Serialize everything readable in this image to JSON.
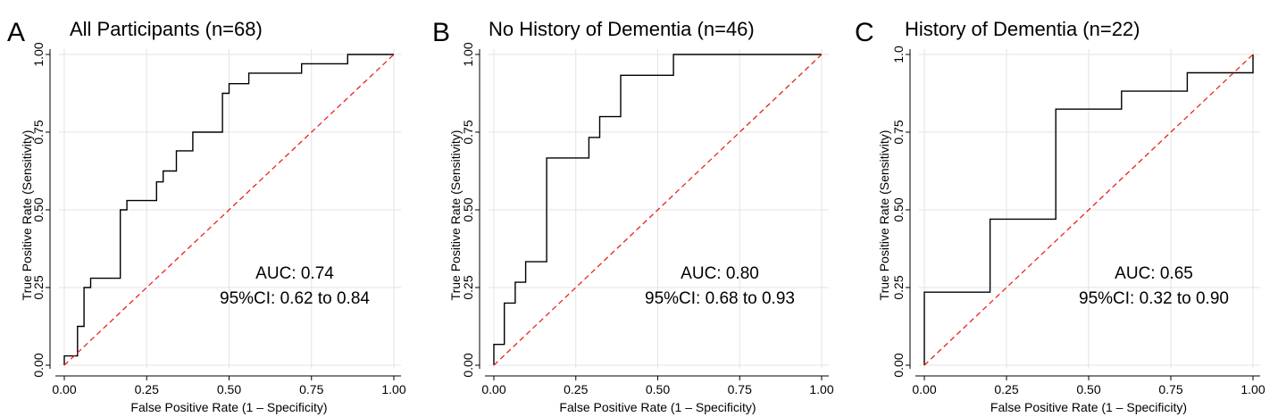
{
  "figure": {
    "panels": [
      {
        "letter": "A",
        "title": "All Participants (n=68)",
        "auc_label": "AUC: 0.74",
        "ci_label": "95%CI: 0.62 to 0.84"
      },
      {
        "letter": "B",
        "title": "No History of Dementia (n=46)",
        "auc_label": "AUC: 0.80",
        "ci_label": "95%CI: 0.68 to 0.93"
      },
      {
        "letter": "C",
        "title": "History of Dementia (n=22)",
        "auc_label": "AUC: 0.65",
        "ci_label": "95%CI: 0.32 to 0.90"
      }
    ]
  },
  "chart_data": [
    {
      "type": "line",
      "title": "All Participants (n=68)",
      "xlabel": "False Positive Rate (1 – Specificity)",
      "ylabel": "True Positive Rate (Sensitivity)",
      "xlim": [
        0,
        1
      ],
      "ylim": [
        0,
        1
      ],
      "x_ticks": [
        "0.00",
        "0.25",
        "0.50",
        "0.75",
        "1.00"
      ],
      "y_ticks": [
        "0.00",
        "0.25",
        "0.50",
        "0.75",
        "1.00"
      ],
      "grid": true,
      "annotations": [
        "AUC: 0.74",
        "95%CI: 0.62 to 0.84"
      ],
      "series": [
        {
          "style": "step",
          "color": "#000000",
          "x": [
            0,
            0,
            0.02,
            0.02,
            0.04,
            0.04,
            0.06,
            0.06,
            0.08,
            0.08,
            0.17,
            0.17,
            0.19,
            0.19,
            0.28,
            0.28,
            0.3,
            0.3,
            0.32,
            0.32,
            0.34,
            0.34,
            0.39,
            0.39,
            0.48,
            0.48,
            0.5,
            0.5,
            0.56,
            0.56,
            0.72,
            0.72,
            0.86,
            0.86,
            1
          ],
          "y": [
            0,
            0.03,
            0.03,
            0.03,
            0.03,
            0.125,
            0.125,
            0.25,
            0.25,
            0.28,
            0.28,
            0.5,
            0.5,
            0.53,
            0.53,
            0.59,
            0.59,
            0.625,
            0.625,
            0.625,
            0.625,
            0.69,
            0.69,
            0.75,
            0.75,
            0.875,
            0.875,
            0.906,
            0.906,
            0.94,
            0.94,
            0.97,
            0.97,
            1,
            1
          ]
        },
        {
          "style": "dashed",
          "color": "#e8231f",
          "x": [
            0,
            1
          ],
          "y": [
            0,
            1
          ]
        }
      ]
    },
    {
      "type": "line",
      "title": "No History of Dementia (n=46)",
      "xlabel": "False Positive Rate (1 – Specificity)",
      "ylabel": "True Positive Rate (Sensitivity)",
      "xlim": [
        0,
        1
      ],
      "ylim": [
        0,
        1
      ],
      "x_ticks": [
        "0.00",
        "0.25",
        "0.50",
        "0.75",
        "1.00"
      ],
      "y_ticks": [
        "0.00",
        "0.25",
        "0.50",
        "0.75",
        "1.00"
      ],
      "grid": true,
      "annotations": [
        "AUC: 0.80",
        "95%CI: 0.68 to 0.93"
      ],
      "series": [
        {
          "style": "step",
          "color": "#000000",
          "x": [
            0,
            0,
            0.032,
            0.032,
            0.065,
            0.065,
            0.097,
            0.097,
            0.161,
            0.161,
            0.29,
            0.29,
            0.323,
            0.323,
            0.387,
            0.387,
            0.548,
            0.548,
            1
          ],
          "y": [
            0,
            0.067,
            0.067,
            0.2,
            0.2,
            0.267,
            0.267,
            0.333,
            0.333,
            0.667,
            0.667,
            0.733,
            0.733,
            0.8,
            0.8,
            0.933,
            0.933,
            1,
            1
          ]
        },
        {
          "style": "dashed",
          "color": "#e8231f",
          "x": [
            0,
            1
          ],
          "y": [
            0,
            1
          ]
        }
      ]
    },
    {
      "type": "line",
      "title": "History of Dementia (n=22)",
      "xlabel": "False Positive Rate (1 – Specificity)",
      "ylabel": "True Positive Rate (Sensitivity)",
      "xlim": [
        0,
        1
      ],
      "ylim": [
        0,
        1
      ],
      "x_ticks": [
        "0.00",
        "0.25",
        "0.50",
        "0.75",
        "1.00"
      ],
      "y_ticks": [
        "0.00",
        "0.25",
        "0.50",
        "0.75",
        "1.0"
      ],
      "grid": true,
      "annotations": [
        "AUC: 0.65",
        "95%CI: 0.32 to 0.90"
      ],
      "series": [
        {
          "style": "step",
          "color": "#000000",
          "x": [
            0,
            0,
            0.2,
            0.2,
            0.4,
            0.4,
            0.6,
            0.6,
            0.8,
            0.8,
            1,
            1
          ],
          "y": [
            0,
            0.235,
            0.235,
            0.47,
            0.47,
            0.824,
            0.824,
            0.882,
            0.882,
            0.941,
            0.941,
            1
          ]
        },
        {
          "style": "dashed",
          "color": "#e8231f",
          "x": [
            0,
            1
          ],
          "y": [
            0,
            1
          ]
        }
      ]
    }
  ]
}
